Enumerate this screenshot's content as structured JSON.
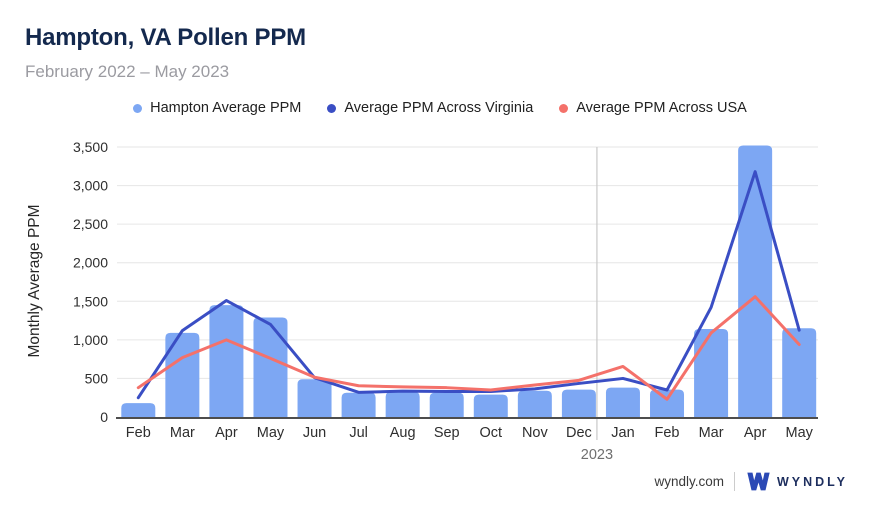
{
  "header": {
    "title": "Hampton, VA Pollen PPM",
    "subtitle": "February 2022 – May 2023"
  },
  "chart_data": {
    "type": "bar",
    "title": "Hampton, VA Pollen PPM",
    "subtitle": "February 2022 – May 2023",
    "categories": [
      "Feb",
      "Mar",
      "Apr",
      "May",
      "Jun",
      "Jul",
      "Aug",
      "Sep",
      "Oct",
      "Nov",
      "Dec",
      "Jan",
      "Feb",
      "Mar",
      "Apr",
      "May"
    ],
    "year_divider_after_index": 10,
    "year_label": "2023",
    "xlabel": "",
    "ylabel": "Monthly Average PPM",
    "ylim": [
      0,
      3500
    ],
    "ytick_step": 500,
    "grid": true,
    "legend_position": "top",
    "series": [
      {
        "name": "Hampton Average PPM",
        "type": "bar",
        "color": "#7da7f3",
        "values": [
          180,
          1090,
          1450,
          1290,
          490,
          315,
          325,
          315,
          290,
          340,
          355,
          380,
          355,
          1140,
          3520,
          1150
        ]
      },
      {
        "name": "Average PPM Across Virginia",
        "type": "line",
        "color": "#3a4ec4",
        "values": [
          250,
          1120,
          1510,
          1200,
          510,
          320,
          335,
          330,
          330,
          365,
          435,
          500,
          350,
          1420,
          3180,
          1125
        ]
      },
      {
        "name": "Average PPM Across USA",
        "type": "line",
        "color": "#f4716a",
        "values": [
          380,
          770,
          1000,
          760,
          515,
          405,
          390,
          380,
          350,
          415,
          475,
          655,
          230,
          1090,
          1560,
          940
        ]
      }
    ],
    "colors": {
      "grid": "#e6e6e6",
      "axis_line": "#4d4d4d",
      "year_divider": "#c9c9c9",
      "tick_label": "#2e2e2e",
      "year_label_color": "#6f6f6f"
    }
  },
  "footer": {
    "site": "wyndly.com",
    "brand": "WYNDLY",
    "brand_color": "#1d2e5e",
    "mark_color": "#2b49b5"
  }
}
